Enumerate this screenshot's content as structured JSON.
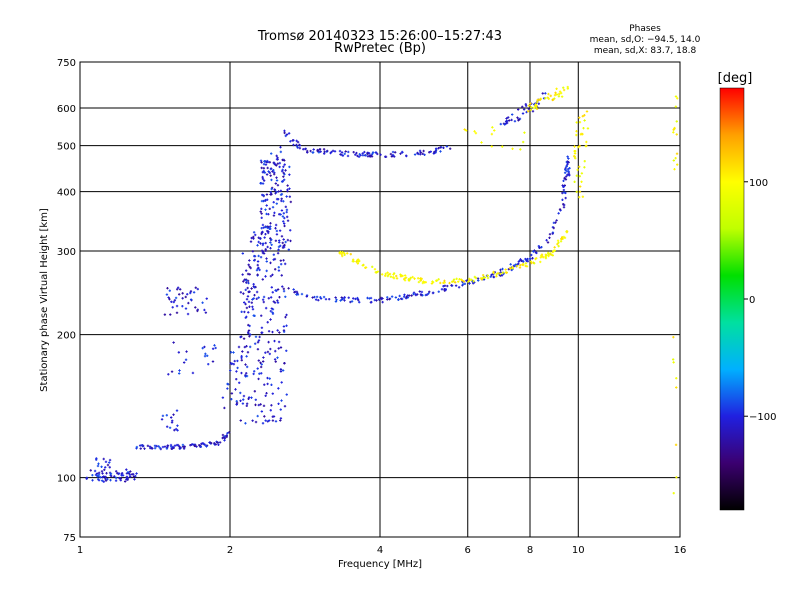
{
  "chart_data": {
    "type": "scatter",
    "title": "Tromsø 20140323 15:26:00–15:27:43",
    "subtitle": "RwPretec (Bp)",
    "xlabel": "Frequency [MHz]",
    "ylabel": "Stationary phase Virtual Height [km]",
    "x_scale": "log",
    "y_scale": "log",
    "xlim": [
      1,
      16
    ],
    "ylim": [
      75,
      750
    ],
    "x_ticks": [
      1,
      2,
      4,
      6,
      8,
      10,
      16
    ],
    "x_tick_labels": [
      "1",
      "2",
      "4",
      "6",
      "8",
      "10",
      "16"
    ],
    "y_ticks": [
      75,
      100,
      200,
      300,
      400,
      500,
      600,
      750
    ],
    "y_tick_labels": [
      "75",
      "100",
      "200",
      "300",
      "400",
      "500",
      "600",
      "750"
    ],
    "grid": true,
    "stats": {
      "header": "Phases",
      "line1": "mean, sd,O: −94.5, 14.0",
      "line2": "mean, sd,X: 83.7, 18.8"
    },
    "colorbar": {
      "label": "[deg]",
      "range": [
        -180,
        180
      ],
      "ticks": [
        100,
        0,
        -100
      ],
      "tick_labels": [
        "100",
        "0",
        "−100"
      ],
      "colors": [
        "#000000",
        "#3b0070",
        "#2020e0",
        "#00b0ff",
        "#00e0a0",
        "#00e000",
        "#c0ff00",
        "#ffff00",
        "#ffa000",
        "#ff0000"
      ]
    },
    "series": [
      {
        "phase": -105,
        "segments": [
          {
            "kind": "spread",
            "f": [
              1.03,
              1.3
            ],
            "h": [
              98,
              104
            ],
            "n": 70
          },
          {
            "kind": "spread",
            "f": [
              1.05,
              1.15
            ],
            "h": [
              105,
              110
            ],
            "n": 12
          },
          {
            "kind": "curve",
            "pts": [
              [
                1.3,
                116
              ],
              [
                1.6,
                116
              ],
              [
                1.9,
                118
              ],
              [
                2.0,
                125
              ]
            ],
            "jit": 0.01,
            "n": 90
          },
          {
            "kind": "spread",
            "f": [
              1.45,
              1.58
            ],
            "h": [
              125,
              140
            ],
            "n": 14
          },
          {
            "kind": "spread",
            "f": [
              1.5,
              1.9
            ],
            "h": [
              165,
              195
            ],
            "n": 20
          },
          {
            "kind": "spread",
            "f": [
              1.48,
              1.82
            ],
            "h": [
              220,
              255
            ],
            "n": 40
          },
          {
            "kind": "curve",
            "pts": [
              [
                2.0,
                140
              ],
              [
                2.15,
                210
              ],
              [
                2.25,
                280
              ],
              [
                2.35,
                360
              ],
              [
                2.45,
                500
              ]
            ],
            "jit": 0.04,
            "n": 120
          },
          {
            "kind": "spread",
            "f": [
              2.1,
              2.6
            ],
            "h": [
              130,
              300
            ],
            "n": 200
          },
          {
            "kind": "spread",
            "f": [
              2.3,
              2.65
            ],
            "h": [
              300,
              470
            ],
            "n": 150
          },
          {
            "kind": "curve",
            "pts": [
              [
                2.55,
                250
              ],
              [
                3.0,
                238
              ],
              [
                4.0,
                236
              ],
              [
                5.0,
                245
              ],
              [
                6.0,
                258
              ],
              [
                7.0,
                270
              ],
              [
                8.0,
                290
              ],
              [
                8.8,
                320
              ],
              [
                9.3,
                380
              ],
              [
                9.6,
                470
              ]
            ],
            "jit": 0.012,
            "n": 230
          },
          {
            "kind": "curve",
            "pts": [
              [
                2.55,
                540
              ],
              [
                2.8,
                490
              ],
              [
                3.5,
                480
              ],
              [
                4.0,
                478
              ],
              [
                5.0,
                483
              ],
              [
                5.5,
                495
              ]
            ],
            "jit": 0.012,
            "n": 120
          },
          {
            "kind": "curve",
            "pts": [
              [
                7.0,
                560
              ],
              [
                7.6,
                580
              ],
              [
                8.2,
                610
              ],
              [
                8.6,
                640
              ]
            ],
            "jit": 0.02,
            "n": 40
          }
        ]
      },
      {
        "phase": 100,
        "segments": [
          {
            "kind": "curve",
            "pts": [
              [
                3.3,
                300
              ],
              [
                4.0,
                270
              ],
              [
                5.0,
                258
              ],
              [
                6.0,
                260
              ],
              [
                7.0,
                270
              ],
              [
                8.0,
                282
              ],
              [
                9.0,
                300
              ],
              [
                9.5,
                330
              ]
            ],
            "jit": 0.012,
            "n": 180
          },
          {
            "kind": "curve",
            "pts": [
              [
                8.0,
                600
              ],
              [
                8.6,
                630
              ],
              [
                9.4,
                655
              ]
            ],
            "jit": 0.02,
            "n": 40
          },
          {
            "kind": "curve",
            "pts": [
              [
                9.9,
                390
              ],
              [
                10.0,
                440
              ],
              [
                10.1,
                500
              ],
              [
                10.2,
                560
              ],
              [
                10.3,
                600
              ]
            ],
            "jit": 0.03,
            "n": 40
          },
          {
            "kind": "spread",
            "f": [
              5.5,
              7.8
            ],
            "h": [
              490,
              560
            ],
            "n": 14
          },
          {
            "kind": "spread",
            "f": [
              15.5,
              15.8
            ],
            "h": [
              440,
              660
            ],
            "n": 14
          },
          {
            "kind": "spread",
            "f": [
              15.5,
              15.8
            ],
            "h": [
              85,
              200
            ],
            "n": 8
          }
        ]
      }
    ]
  }
}
